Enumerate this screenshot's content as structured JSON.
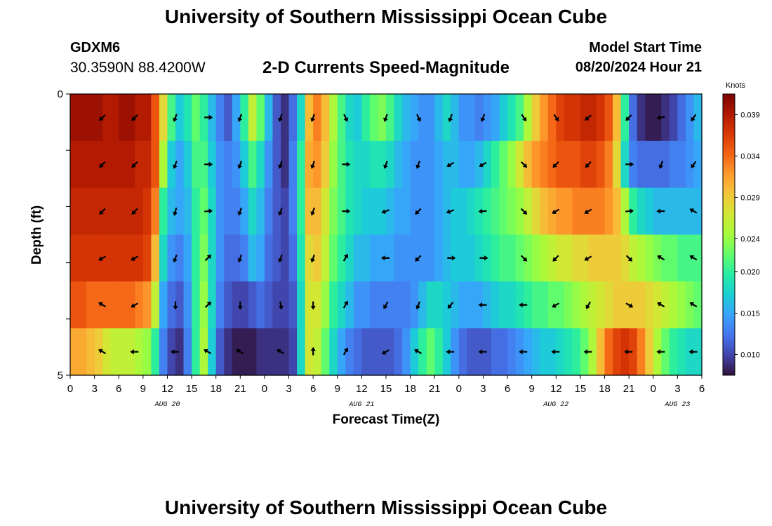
{
  "header": {
    "title": "University of Southern Mississippi Ocean Cube",
    "station_id": "GDXM6",
    "station_coords": "30.3590N  88.4200W",
    "plot_title": "2-D Currents Speed-Magnitude",
    "model_label": "Model Start Time",
    "model_time": "08/20/2024 Hour 21"
  },
  "footer": {
    "title": "University of Southern Mississippi Ocean Cube"
  },
  "chart_data": {
    "type": "heatmap",
    "title": "2-D Currents Speed-Magnitude",
    "xlabel": "Forecast Time(Z)",
    "ylabel": "Depth (ft)",
    "x_ticks": [
      "0",
      "3",
      "6",
      "9",
      "12",
      "15",
      "18",
      "21",
      "0",
      "3",
      "6",
      "9",
      "12",
      "15",
      "18",
      "21",
      "0",
      "3",
      "6",
      "9",
      "12",
      "15",
      "18",
      "21",
      "0",
      "3",
      "6"
    ],
    "date_labels": [
      {
        "text": "AUG 20",
        "hour": 12
      },
      {
        "text": "AUG 21",
        "hour": 36
      },
      {
        "text": "AUG 22",
        "hour": 60
      },
      {
        "text": "AUG 23",
        "hour": 75
      }
    ],
    "x_range_hours": [
      0,
      78
    ],
    "y_ticks": [
      "0",
      "",
      "",
      "",
      "",
      "5"
    ],
    "ylim": [
      0,
      5
    ],
    "colorbar": {
      "unit": "Knots",
      "min": 0.0075,
      "max": 0.0415,
      "labels": [
        "0.039",
        "0.034",
        "0.029",
        "0.024",
        "0.020",
        "0.015",
        "0.010"
      ],
      "label_values": [
        0.039,
        0.034,
        0.029,
        0.024,
        0.02,
        0.015,
        0.01
      ],
      "stops": [
        "#30123b",
        "#4145ab",
        "#4675ed",
        "#39a2fc",
        "#1bcfd4",
        "#24eca6",
        "#61fc6c",
        "#a4fc3b",
        "#d1e834",
        "#f3c63a",
        "#fe9b2d",
        "#f36315",
        "#d93806",
        "#b11901",
        "#7a0403"
      ]
    },
    "rows": [
      {
        "depth": 0,
        "speeds": [
          0.04,
          0.04,
          0.04,
          0.04,
          0.039,
          0.039,
          0.04,
          0.04,
          0.039,
          0.039,
          0.035,
          0.028,
          0.021,
          0.017,
          0.019,
          0.022,
          0.02,
          0.016,
          0.013,
          0.011,
          0.015,
          0.02,
          0.026,
          0.022,
          0.016,
          0.011,
          0.009,
          0.012,
          0.018,
          0.03,
          0.033,
          0.03,
          0.025,
          0.021,
          0.018,
          0.017,
          0.02,
          0.022,
          0.023,
          0.021,
          0.018,
          0.016,
          0.015,
          0.014,
          0.014,
          0.016,
          0.018,
          0.016,
          0.014,
          0.014,
          0.013,
          0.014,
          0.015,
          0.017,
          0.019,
          0.021,
          0.025,
          0.029,
          0.032,
          0.034,
          0.036,
          0.037,
          0.037,
          0.038,
          0.038,
          0.037,
          0.035,
          0.03,
          0.02,
          0.012,
          0.009,
          0.008,
          0.008,
          0.009,
          0.01,
          0.012,
          0.014,
          0.016
        ]
      },
      {
        "depth": 1,
        "speeds": [
          0.039,
          0.039,
          0.039,
          0.039,
          0.039,
          0.039,
          0.039,
          0.039,
          0.038,
          0.038,
          0.035,
          0.025,
          0.017,
          0.015,
          0.017,
          0.021,
          0.021,
          0.017,
          0.014,
          0.013,
          0.014,
          0.017,
          0.021,
          0.018,
          0.014,
          0.011,
          0.009,
          0.013,
          0.02,
          0.031,
          0.032,
          0.029,
          0.024,
          0.021,
          0.019,
          0.018,
          0.018,
          0.019,
          0.019,
          0.018,
          0.016,
          0.015,
          0.014,
          0.014,
          0.014,
          0.015,
          0.016,
          0.016,
          0.015,
          0.015,
          0.016,
          0.018,
          0.02,
          0.022,
          0.024,
          0.027,
          0.03,
          0.032,
          0.033,
          0.034,
          0.035,
          0.035,
          0.035,
          0.036,
          0.036,
          0.035,
          0.033,
          0.028,
          0.018,
          0.013,
          0.012,
          0.012,
          0.012,
          0.012,
          0.013,
          0.013,
          0.014,
          0.015
        ]
      },
      {
        "depth": 2,
        "speeds": [
          0.038,
          0.038,
          0.038,
          0.038,
          0.038,
          0.038,
          0.038,
          0.038,
          0.038,
          0.037,
          0.033,
          0.02,
          0.016,
          0.015,
          0.016,
          0.02,
          0.022,
          0.018,
          0.014,
          0.013,
          0.013,
          0.015,
          0.018,
          0.016,
          0.013,
          0.011,
          0.01,
          0.013,
          0.02,
          0.03,
          0.03,
          0.027,
          0.023,
          0.021,
          0.019,
          0.018,
          0.017,
          0.017,
          0.017,
          0.016,
          0.015,
          0.015,
          0.014,
          0.014,
          0.014,
          0.015,
          0.016,
          0.017,
          0.017,
          0.018,
          0.019,
          0.02,
          0.021,
          0.022,
          0.023,
          0.024,
          0.026,
          0.028,
          0.03,
          0.031,
          0.032,
          0.032,
          0.033,
          0.033,
          0.033,
          0.033,
          0.032,
          0.03,
          0.025,
          0.02,
          0.018,
          0.017,
          0.016,
          0.016,
          0.016,
          0.016,
          0.016,
          0.016
        ]
      },
      {
        "depth": 3,
        "speeds": [
          0.037,
          0.037,
          0.037,
          0.037,
          0.037,
          0.037,
          0.037,
          0.037,
          0.037,
          0.036,
          0.03,
          0.018,
          0.014,
          0.013,
          0.015,
          0.02,
          0.023,
          0.018,
          0.014,
          0.012,
          0.012,
          0.013,
          0.016,
          0.015,
          0.012,
          0.011,
          0.01,
          0.012,
          0.019,
          0.028,
          0.029,
          0.026,
          0.022,
          0.02,
          0.018,
          0.016,
          0.016,
          0.015,
          0.015,
          0.015,
          0.014,
          0.014,
          0.014,
          0.014,
          0.014,
          0.015,
          0.016,
          0.017,
          0.017,
          0.017,
          0.018,
          0.019,
          0.02,
          0.021,
          0.021,
          0.022,
          0.023,
          0.024,
          0.025,
          0.026,
          0.027,
          0.027,
          0.028,
          0.028,
          0.029,
          0.029,
          0.029,
          0.029,
          0.028,
          0.026,
          0.025,
          0.024,
          0.023,
          0.022,
          0.022,
          0.021,
          0.021,
          0.021
        ]
      },
      {
        "depth": 4,
        "speeds": [
          0.035,
          0.035,
          0.034,
          0.034,
          0.034,
          0.034,
          0.034,
          0.034,
          0.033,
          0.032,
          0.026,
          0.015,
          0.012,
          0.011,
          0.014,
          0.02,
          0.024,
          0.018,
          0.013,
          0.011,
          0.01,
          0.01,
          0.011,
          0.012,
          0.011,
          0.01,
          0.01,
          0.011,
          0.018,
          0.027,
          0.027,
          0.024,
          0.02,
          0.018,
          0.016,
          0.014,
          0.014,
          0.013,
          0.013,
          0.013,
          0.013,
          0.013,
          0.014,
          0.016,
          0.018,
          0.018,
          0.017,
          0.016,
          0.015,
          0.015,
          0.015,
          0.016,
          0.017,
          0.018,
          0.018,
          0.019,
          0.02,
          0.021,
          0.021,
          0.022,
          0.022,
          0.023,
          0.024,
          0.025,
          0.026,
          0.027,
          0.028,
          0.029,
          0.029,
          0.029,
          0.029,
          0.028,
          0.027,
          0.026,
          0.025,
          0.024,
          0.023,
          0.022
        ]
      },
      {
        "depth": 5,
        "speeds": [
          0.031,
          0.031,
          0.03,
          0.029,
          0.027,
          0.026,
          0.026,
          0.026,
          0.025,
          0.024,
          0.02,
          0.013,
          0.01,
          0.009,
          0.013,
          0.02,
          0.025,
          0.017,
          0.011,
          0.009,
          0.008,
          0.008,
          0.008,
          0.009,
          0.009,
          0.009,
          0.009,
          0.01,
          0.018,
          0.027,
          0.026,
          0.022,
          0.018,
          0.015,
          0.013,
          0.012,
          0.011,
          0.011,
          0.011,
          0.011,
          0.012,
          0.014,
          0.017,
          0.02,
          0.022,
          0.02,
          0.017,
          0.014,
          0.012,
          0.011,
          0.011,
          0.011,
          0.012,
          0.012,
          0.013,
          0.014,
          0.015,
          0.016,
          0.017,
          0.017,
          0.018,
          0.019,
          0.02,
          0.022,
          0.025,
          0.03,
          0.034,
          0.036,
          0.037,
          0.036,
          0.033,
          0.029,
          0.025,
          0.022,
          0.02,
          0.019,
          0.018,
          0.018
        ]
      }
    ],
    "vector_hours": [
      4,
      8,
      13,
      17,
      21,
      26,
      30,
      34,
      39,
      43,
      47,
      51,
      56,
      60,
      64,
      69,
      73,
      77
    ],
    "vector_directions_deg": [
      [
        225,
        225,
        200,
        90,
        200,
        200,
        200,
        155,
        200,
        155,
        200,
        200,
        145,
        145,
        230,
        225,
        260,
        215
      ],
      [
        225,
        225,
        200,
        90,
        200,
        200,
        200,
        90,
        200,
        200,
        240,
        240,
        135,
        225,
        225,
        90,
        200,
        215
      ],
      [
        225,
        225,
        195,
        85,
        200,
        200,
        200,
        90,
        250,
        225,
        250,
        265,
        135,
        240,
        240,
        85,
        270,
        300
      ],
      [
        240,
        240,
        200,
        45,
        200,
        200,
        200,
        30,
        270,
        225,
        90,
        90,
        135,
        225,
        240,
        135,
        300,
        300
      ],
      [
        300,
        240,
        180,
        45,
        180,
        170,
        180,
        30,
        210,
        200,
        220,
        270,
        270,
        240,
        210,
        120,
        300,
        300
      ],
      [
        300,
        270,
        270,
        300,
        300,
        300,
        0,
        30,
        240,
        300,
        270,
        270,
        270,
        270,
        270,
        270,
        270,
        270
      ]
    ]
  }
}
